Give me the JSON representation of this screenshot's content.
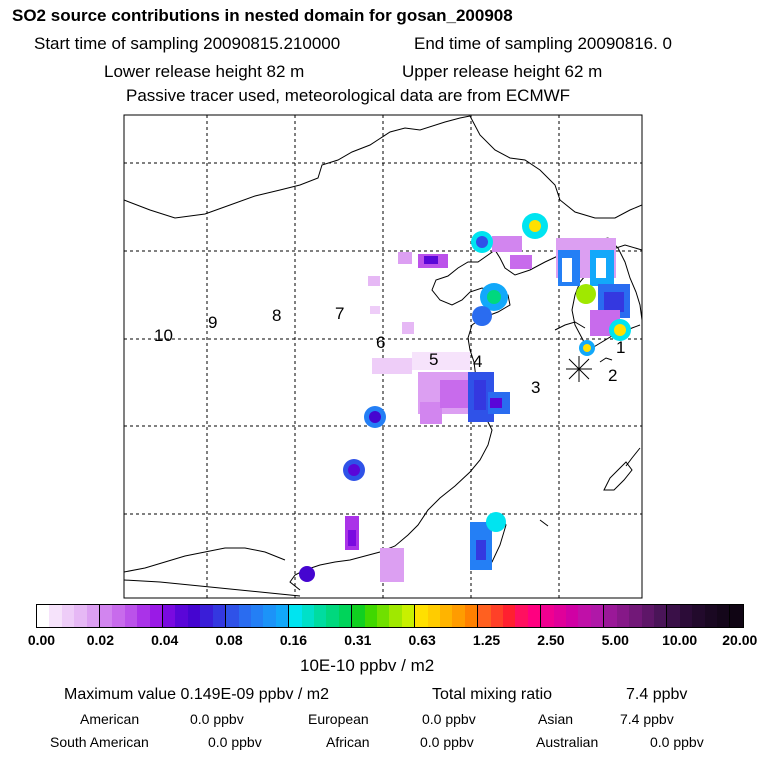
{
  "header": {
    "title": "SO2 source contributions in nested domain for gosan_200908",
    "start_label": "Start time of sampling 20090815.210000",
    "end_label": "End time of sampling 20090816.     0",
    "lower_label": "Lower release height   82 m",
    "upper_label": "Upper release height   62 m",
    "info_line": "Passive tracer used, meteorological data are from ECMWF"
  },
  "map": {
    "trajectory_labels": [
      "1",
      "2",
      "3",
      "4",
      "5",
      "6",
      "7",
      "8",
      "9",
      "10"
    ],
    "receptor_icon": "star-icon"
  },
  "colorbar": {
    "ticks": [
      "0.00",
      "0.02",
      "0.04",
      "0.08",
      "0.16",
      "0.31",
      "0.63",
      "1.25",
      "2.50",
      "5.00",
      "10.00",
      "20.00"
    ],
    "colors": [
      "#ffffff",
      "#f6e3fb",
      "#eecdf8",
      "#e6b8f5",
      "#dc9ff2",
      "#d285ef",
      "#c86bec",
      "#bb52ea",
      "#aa33e8",
      "#9a1ae6",
      "#7a0ae0",
      "#5a06d8",
      "#4505d0",
      "#3a1ed8",
      "#3438e0",
      "#2f52e8",
      "#2a6cf0",
      "#247ff5",
      "#1c93f8",
      "#12a8fa",
      "#00e4f0",
      "#00e0c8",
      "#00dca0",
      "#00d87e",
      "#00d45a",
      "#10d020",
      "#40d800",
      "#70e000",
      "#a0e800",
      "#c8f000",
      "#ffe000",
      "#ffcc00",
      "#ffb400",
      "#ff9c00",
      "#ff8000",
      "#ff6020",
      "#ff4028",
      "#ff2030",
      "#ff1060",
      "#ff0080",
      "#f00090",
      "#e0009a",
      "#d000a4",
      "#c010a8",
      "#b018a8",
      "#9a1898",
      "#861888",
      "#721878",
      "#5e1668",
      "#4a1458",
      "#3a1048",
      "#2c0c38",
      "#220a2c",
      "#1a0822",
      "#14061a",
      "#100514"
    ],
    "units": "10E-10 ppbv / m2"
  },
  "summary": {
    "max_value": "Maximum value  0.149E-09 ppbv / m2",
    "total_label": "Total mixing ratio",
    "total_value": "7.4 ppbv",
    "american_label": "American",
    "american_value": "0.0 ppbv",
    "european_label": "European",
    "european_value": "0.0 ppbv",
    "asian_label": "Asian",
    "asian_value": "7.4 ppbv",
    "south_american_label": "South American",
    "south_american_value": "0.0 ppbv",
    "african_label": "African",
    "african_value": "0.0 ppbv",
    "australian_label": "Australian",
    "australian_value": "0.0 ppbv"
  }
}
